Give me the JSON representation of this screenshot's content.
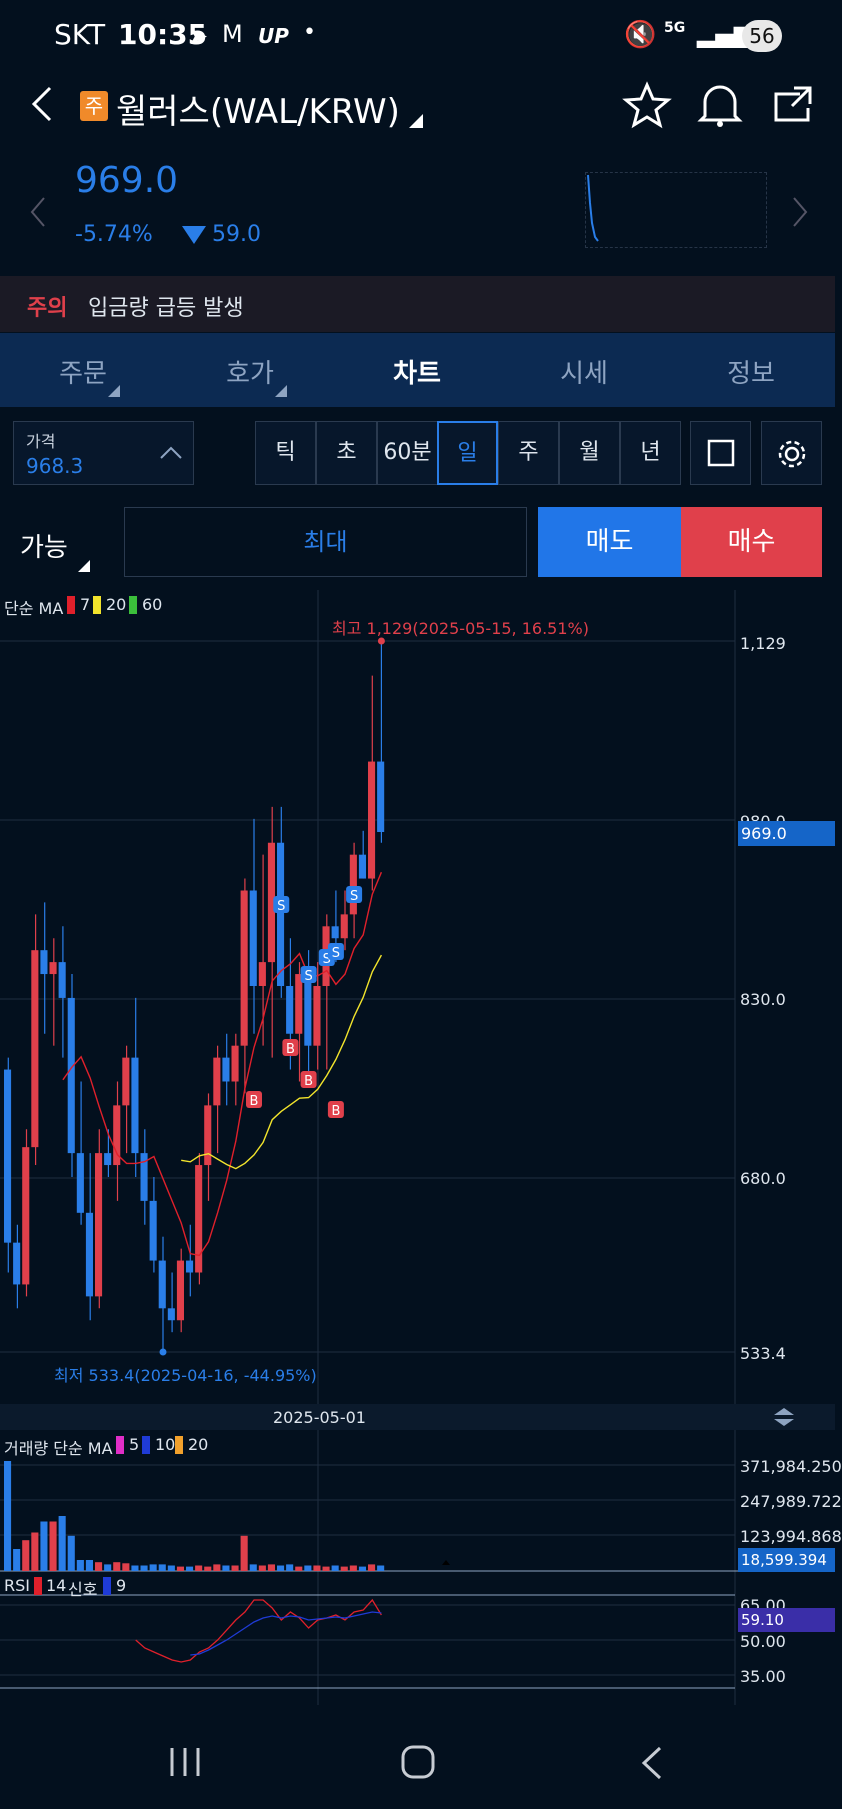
{
  "status": {
    "carrier": "SKT",
    "time": "10:35",
    "up": "UP",
    "net": "5G",
    "battery": "56"
  },
  "header": {
    "badge": "주",
    "coin": "월러스(WAL/KRW)"
  },
  "ticker": {
    "price": "969.0",
    "pct": "-5.74%",
    "diff": "59.0"
  },
  "notice": {
    "tag": "주의",
    "text": "입금량 급등 발생"
  },
  "tabs": [
    "주문",
    "호가",
    "차트",
    "시세",
    "정보"
  ],
  "price_box": {
    "label": "가격",
    "value": "968.3"
  },
  "periods": [
    "틱",
    "초",
    "60분",
    "일",
    "주",
    "월",
    "년"
  ],
  "order": {
    "mode": "가능",
    "max": "최대",
    "sell": "매도",
    "buy": "매수"
  },
  "colors": {
    "up": "#e0404b",
    "down": "#2a7ee8",
    "ma7": "#e0202b",
    "ma20": "#f2e42c",
    "ma60": "#3bbf3b"
  },
  "chart_data": {
    "type": "candlestick",
    "ma_legend": {
      "label": "단순 MA",
      "periods": [
        "7",
        "20",
        "60"
      ]
    },
    "high_label": "최고 1,129(2025-05-15, 16.51%)",
    "low_label": "최저 533.4(2025-04-16, -44.95%)",
    "price_ticks": [
      "1,129",
      "980.0",
      "830.0",
      "680.0",
      "533.4"
    ],
    "current_price": "969.0",
    "x_label": "2025-05-01",
    "volume_legend": {
      "label": "거래량 단순 MA",
      "periods": [
        "5",
        "10",
        "20"
      ]
    },
    "volume_ticks": [
      "371,984.250",
      "247,989.722",
      "123,994.868"
    ],
    "volume_current": "18,599.394",
    "rsi_legend": {
      "label": "RSI",
      "period": "14",
      "signal_label": "신호",
      "signal": "9"
    },
    "rsi_ticks": [
      "65.00",
      "50.00",
      "35.00"
    ],
    "rsi_current": "59.10"
  }
}
